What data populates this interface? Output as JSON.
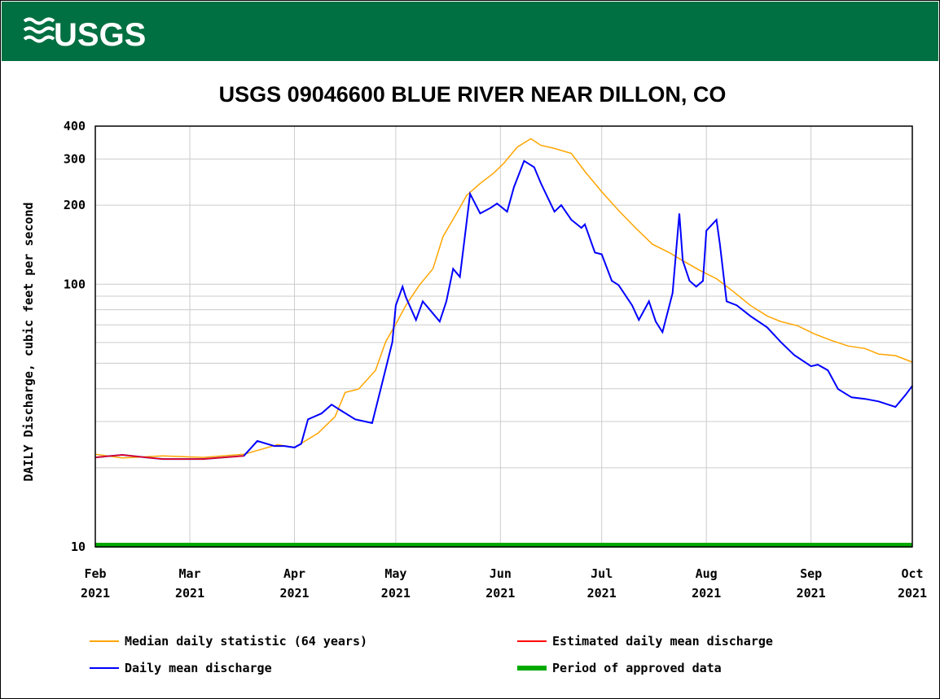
{
  "header": {
    "logo": "USGS"
  },
  "chart_data": {
    "type": "line",
    "title": "USGS 09046600 BLUE RIVER NEAR DILLON, CO",
    "y_label": "DAILY Discharge, cubic feet per second",
    "log_y": true,
    "grid": true,
    "xlim": [
      0,
      242
    ],
    "xticks": [
      {
        "value": 0,
        "label": "Feb 2021"
      },
      {
        "value": 28,
        "label": "Mar 2021"
      },
      {
        "value": 59,
        "label": "Apr 2021"
      },
      {
        "value": 89,
        "label": "May 2021"
      },
      {
        "value": 120,
        "label": "Jun 2021"
      },
      {
        "value": 150,
        "label": "Jul 2021"
      },
      {
        "value": 181,
        "label": "Aug 2021"
      },
      {
        "value": 212,
        "label": "Sep 2021"
      },
      {
        "value": 242,
        "label": "Oct 2021"
      }
    ],
    "ylim": [
      10,
      400
    ],
    "yticks": [
      10,
      100,
      200,
      300,
      400
    ],
    "minor_yticks": [
      20,
      30,
      40,
      50,
      60,
      70,
      80,
      90
    ],
    "series": [
      {
        "name": "Median daily statistic (64 years)",
        "color": "#ffa500",
        "x": [
          0,
          8,
          20,
          32,
          44,
          54,
          59,
          66,
          71,
          74,
          78,
          83,
          86,
          89,
          92,
          96,
          100,
          103,
          107,
          110,
          114,
          118,
          121,
          125,
          129,
          132,
          136,
          141,
          145,
          150,
          155,
          160,
          165,
          170,
          174,
          179,
          184,
          189,
          194,
          199,
          203,
          208,
          213,
          218,
          223,
          228,
          232,
          237,
          242
        ],
        "values": [
          22.5,
          21.8,
          22.2,
          21.9,
          22.5,
          24.5,
          23.9,
          27.1,
          31.3,
          38.7,
          39.9,
          47,
          60.3,
          70.5,
          83.1,
          99.3,
          114.5,
          152,
          186,
          218,
          242,
          265,
          289,
          333,
          358,
          338,
          329,
          315,
          269,
          225,
          191,
          164,
          142,
          132,
          123,
          113,
          105,
          93.8,
          83.1,
          75.7,
          72.1,
          69.5,
          64.7,
          61.1,
          58.2,
          56.9,
          54.2,
          53.5,
          50.5
        ]
      },
      {
        "name": "Estimated daily mean discharge",
        "color": "#ff0000",
        "x": [
          0,
          8,
          15,
          20,
          32,
          44
        ],
        "values": [
          21.9,
          22.4,
          21.9,
          21.6,
          21.6,
          22.2
        ]
      },
      {
        "name": "Daily mean discharge",
        "color": "#0000ff",
        "x": [
          0,
          8,
          15,
          20,
          32,
          44,
          48,
          53,
          56,
          59,
          61,
          63,
          67,
          70,
          73,
          77,
          82,
          85,
          88,
          89,
          91,
          92,
          95,
          97,
          100,
          102,
          104,
          106,
          108,
          111,
          114,
          117,
          119,
          122,
          124,
          127,
          130,
          132,
          136,
          138,
          141,
          144,
          145,
          148,
          150,
          153,
          155,
          159,
          161,
          164,
          166,
          168,
          171,
          173,
          174,
          176,
          178,
          180,
          181,
          184,
          185,
          187,
          190,
          194,
          199,
          203,
          207,
          212,
          214,
          217,
          220,
          224,
          228,
          232,
          237,
          240,
          242
        ],
        "values": [
          21.9,
          22.4,
          21.9,
          21.6,
          21.6,
          22.2,
          25.3,
          24.2,
          24.2,
          23.9,
          24.7,
          30.6,
          32.2,
          34.8,
          32.9,
          30.6,
          29.6,
          42.2,
          60.3,
          83.1,
          97.9,
          89.2,
          73.1,
          86.1,
          77.4,
          72.1,
          86.1,
          114.5,
          106.6,
          221,
          186,
          195,
          203,
          189,
          234,
          295,
          279,
          242,
          189,
          200,
          176,
          164,
          169,
          132,
          130,
          103,
          99.3,
          83.1,
          73.1,
          86.1,
          72.1,
          65.7,
          92.5,
          186,
          123,
          103,
          97.9,
          103,
          160,
          176,
          142,
          86.1,
          83.1,
          75.7,
          68.5,
          60.3,
          53.8,
          48.7,
          49.4,
          47,
          39.9,
          37.1,
          36.6,
          35.8,
          34.1,
          37.9,
          41
        ]
      }
    ],
    "approved_period": [
      0,
      242
    ],
    "approved_name": "Period of approved data",
    "approved_color": "#00aa00"
  }
}
